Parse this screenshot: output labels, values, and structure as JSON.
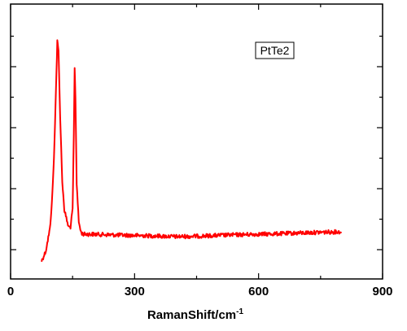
{
  "chart_data": {
    "type": "line",
    "title": "",
    "xlabel": "RamanShift/cm",
    "xlabel_superscript": "-1",
    "ylabel": "",
    "xlim": [
      0,
      900
    ],
    "ylim": [
      0,
      1
    ],
    "x_ticks": [
      0,
      300,
      600,
      900
    ],
    "y_tick_labels_shown": false,
    "grid": false,
    "legend": {
      "text": "PtTe2",
      "position": "top-right"
    },
    "series": [
      {
        "name": "PtTe2",
        "color": "#ff0000",
        "x": [
          75,
          85,
          95,
          100,
          105,
          110,
          113,
          116,
          120,
          125,
          130,
          140,
          145,
          150,
          153,
          155,
          157,
          160,
          165,
          170,
          175,
          180,
          200,
          250,
          300,
          350,
          400,
          450,
          500,
          550,
          600,
          650,
          700,
          750,
          800
        ],
        "y": [
          0.03,
          0.07,
          0.16,
          0.27,
          0.45,
          0.75,
          0.93,
          0.89,
          0.62,
          0.36,
          0.24,
          0.17,
          0.17,
          0.24,
          0.55,
          0.82,
          0.7,
          0.35,
          0.19,
          0.15,
          0.14,
          0.14,
          0.14,
          0.137,
          0.135,
          0.133,
          0.13,
          0.132,
          0.135,
          0.138,
          0.14,
          0.142,
          0.145,
          0.148,
          0.15
        ]
      }
    ]
  }
}
